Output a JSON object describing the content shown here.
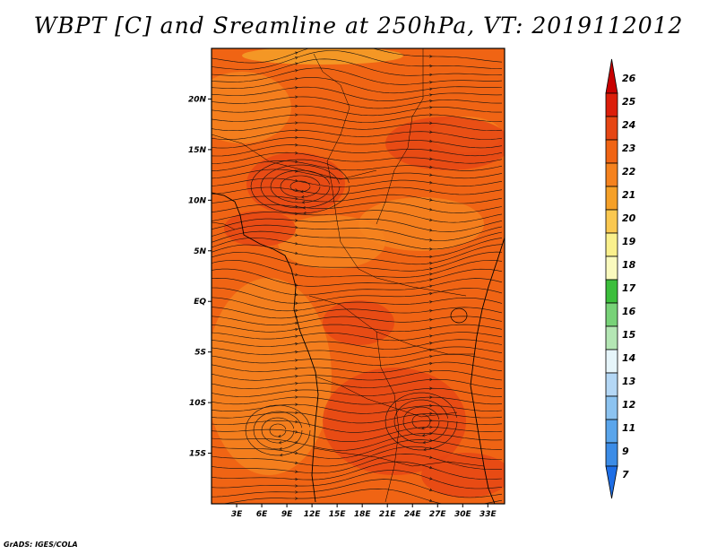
{
  "title": "WBPT [C] and Sreamline at 250hPa, VT: 2019112012",
  "credit": "GrADS: IGES/COLA",
  "map": {
    "lon_range": [
      0,
      35
    ],
    "lat_range": [
      -20,
      25
    ],
    "lon_ticks": [
      "3E",
      "6E",
      "9E",
      "12E",
      "15E",
      "18E",
      "21E",
      "24E",
      "27E",
      "30E",
      "33E"
    ],
    "lat_ticks": [
      "20N",
      "15N",
      "10N",
      "5N",
      "EQ",
      "5S",
      "10S",
      "15S"
    ],
    "field_colors": {
      "base": "#f06414",
      "light": "#f5821e",
      "dark": "#e64614",
      "pale": "#f5a028"
    }
  },
  "colorbar": {
    "labels": [
      "26",
      "25",
      "24",
      "23",
      "22",
      "21",
      "20",
      "19",
      "18",
      "17",
      "16",
      "15",
      "14",
      "13",
      "12",
      "11",
      "9",
      "7"
    ],
    "colors": [
      "#c80000",
      "#dc1e0a",
      "#e64614",
      "#f06414",
      "#f5821e",
      "#f5a028",
      "#fac850",
      "#faf08c",
      "#fafabe",
      "#3cbe3c",
      "#78d278",
      "#b4e6b4",
      "#e6f5fa",
      "#b4d7f5",
      "#8cc3f0",
      "#5aa5eb",
      "#3c8ce6",
      "#1e6ee6"
    ]
  }
}
